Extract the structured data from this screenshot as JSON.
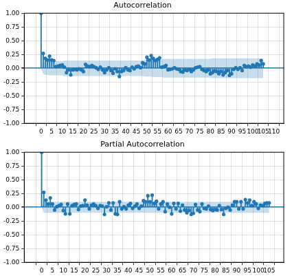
{
  "chart_data": [
    {
      "type": "stem",
      "title": "Autocorrelation",
      "color": "#1f77b4",
      "marker": "o",
      "grid": true,
      "x": [
        0,
        1,
        2,
        3,
        4,
        5,
        6,
        7,
        8,
        9,
        10,
        11,
        12,
        13,
        14,
        15,
        16,
        17,
        18,
        19,
        20,
        21,
        22,
        23,
        24,
        25,
        26,
        27,
        28,
        29,
        30,
        31,
        32,
        33,
        34,
        35,
        36,
        37,
        38,
        39,
        40,
        41,
        42,
        43,
        44,
        45,
        46,
        47,
        48,
        49,
        50,
        51,
        52,
        53,
        54,
        55,
        56,
        57,
        58,
        59,
        60,
        61,
        62,
        63,
        64,
        65,
        66,
        67,
        68,
        69,
        70,
        71,
        72,
        73,
        74,
        75,
        76,
        77,
        78,
        79,
        80,
        81,
        82,
        83,
        84,
        85,
        86,
        87,
        88,
        89,
        90,
        91,
        92,
        93,
        94,
        95,
        96,
        97,
        98,
        99,
        100,
        101,
        102,
        103,
        104,
        105
      ],
      "values": [
        1.0,
        0.27,
        0.18,
        0.15,
        0.22,
        0.15,
        0.14,
        0.03,
        0.04,
        0.05,
        0.06,
        0.02,
        -0.08,
        -0.03,
        -0.12,
        -0.03,
        -0.02,
        -0.03,
        -0.01,
        -0.03,
        -0.06,
        0.07,
        0.04,
        0.03,
        0.05,
        0.03,
        0.01,
        -0.02,
        0.02,
        -0.03,
        -0.08,
        -0.03,
        0.01,
        -0.04,
        -0.09,
        -0.01,
        -0.06,
        -0.15,
        -0.06,
        -0.04,
        0.01,
        -0.03,
        -0.04,
        0.02,
        -0.01,
        0.03,
        0.04,
        0.01,
        0.1,
        0.08,
        0.2,
        0.15,
        0.23,
        0.18,
        0.14,
        0.16,
        0.19,
        0.02,
        0.03,
        0.05,
        -0.03,
        -0.02,
        -0.01,
        0.01,
        -0.01,
        -0.02,
        -0.06,
        -0.07,
        -0.03,
        -0.04,
        -0.02,
        -0.06,
        -0.03,
        0.01,
        0.02,
        0.03,
        -0.02,
        -0.04,
        -0.06,
        -0.03,
        -0.1,
        -0.08,
        -0.05,
        -0.06,
        -0.1,
        -0.06,
        -0.12,
        -0.08,
        -0.04,
        -0.13,
        -0.1,
        -0.02,
        0.01,
        -0.02,
        0.01,
        -0.04,
        0.05,
        0.03,
        0.04,
        0.02,
        0.06,
        0.04,
        0.08,
        0.06,
        0.14,
        0.08
      ],
      "confidence_interval": {
        "upper": [
          0,
          0.11,
          0.12,
          0.12,
          0.13,
          0.13,
          0.13,
          0.13,
          0.13,
          0.13,
          0.13,
          0.14,
          0.14,
          0.14,
          0.14,
          0.14,
          0.14,
          0.14,
          0.14,
          0.14,
          0.14,
          0.14,
          0.14,
          0.14,
          0.14,
          0.14,
          0.14,
          0.14,
          0.14,
          0.14,
          0.14,
          0.14,
          0.14,
          0.14,
          0.14,
          0.14,
          0.14,
          0.14,
          0.14,
          0.14,
          0.14,
          0.14,
          0.14,
          0.14,
          0.14,
          0.14,
          0.14,
          0.14,
          0.14,
          0.15,
          0.15,
          0.15,
          0.15,
          0.16,
          0.16,
          0.16,
          0.16,
          0.16,
          0.17,
          0.17,
          0.17,
          0.17,
          0.17,
          0.17,
          0.17,
          0.17,
          0.17,
          0.17,
          0.17,
          0.17,
          0.17,
          0.17,
          0.17,
          0.17,
          0.17,
          0.17,
          0.17,
          0.17,
          0.17,
          0.17,
          0.17,
          0.18,
          0.18,
          0.18,
          0.18,
          0.18,
          0.18,
          0.18,
          0.18,
          0.18,
          0.18,
          0.18,
          0.18,
          0.18,
          0.18,
          0.18,
          0.18,
          0.18,
          0.18,
          0.18,
          0.18,
          0.18,
          0.18,
          0.18,
          0.18,
          0.18
        ],
        "lower": [
          0,
          -0.11,
          -0.12,
          -0.12,
          -0.13,
          -0.13,
          -0.13,
          -0.13,
          -0.13,
          -0.13,
          -0.13,
          -0.14,
          -0.14,
          -0.14,
          -0.14,
          -0.14,
          -0.14,
          -0.14,
          -0.14,
          -0.14,
          -0.14,
          -0.14,
          -0.14,
          -0.14,
          -0.14,
          -0.14,
          -0.14,
          -0.14,
          -0.14,
          -0.14,
          -0.14,
          -0.14,
          -0.14,
          -0.14,
          -0.14,
          -0.14,
          -0.14,
          -0.14,
          -0.14,
          -0.14,
          -0.14,
          -0.14,
          -0.14,
          -0.14,
          -0.14,
          -0.14,
          -0.14,
          -0.14,
          -0.14,
          -0.15,
          -0.15,
          -0.15,
          -0.15,
          -0.16,
          -0.16,
          -0.16,
          -0.16,
          -0.16,
          -0.17,
          -0.17,
          -0.17,
          -0.17,
          -0.17,
          -0.17,
          -0.17,
          -0.17,
          -0.17,
          -0.17,
          -0.17,
          -0.17,
          -0.17,
          -0.17,
          -0.17,
          -0.17,
          -0.17,
          -0.17,
          -0.17,
          -0.17,
          -0.17,
          -0.17,
          -0.17,
          -0.18,
          -0.18,
          -0.18,
          -0.18,
          -0.18,
          -0.18,
          -0.18,
          -0.18,
          -0.18,
          -0.18,
          -0.18,
          -0.18,
          -0.18,
          -0.18,
          -0.18,
          -0.18,
          -0.18,
          -0.18,
          -0.18,
          -0.18,
          -0.18,
          -0.18,
          -0.18,
          -0.18,
          -0.18
        ]
      },
      "xlim": [
        -5.3,
        112
      ],
      "xticks": [
        0,
        5,
        10,
        15,
        20,
        25,
        30,
        35,
        40,
        45,
        50,
        55,
        60,
        65,
        70,
        75,
        80,
        85,
        90,
        95,
        100,
        105,
        110
      ],
      "ylim": [
        -1,
        1
      ],
      "yticks": [
        {
          "value": -1,
          "label": "-1.00"
        },
        {
          "value": -0.75,
          "label": "-0.75"
        },
        {
          "value": -0.5,
          "label": "-0.50"
        },
        {
          "value": -0.25,
          "label": "-0.25"
        },
        {
          "value": 0,
          "label": "0.00"
        },
        {
          "value": 0.25,
          "label": "0.25"
        },
        {
          "value": 0.5,
          "label": "0.50"
        },
        {
          "value": 0.75,
          "label": "0.75"
        },
        {
          "value": 1,
          "label": "1.00"
        }
      ]
    },
    {
      "type": "stem",
      "title": "Partial Autocorrelation",
      "color": "#1f77b4",
      "marker": "o",
      "grid": true,
      "x": [
        0,
        1,
        2,
        3,
        4,
        5,
        6,
        7,
        8,
        9,
        10,
        11,
        12,
        13,
        14,
        15,
        16,
        17,
        18,
        19,
        20,
        21,
        22,
        23,
        24,
        25,
        26,
        27,
        28,
        29,
        30,
        31,
        32,
        33,
        34,
        35,
        36,
        37,
        38,
        39,
        40,
        41,
        42,
        43,
        44,
        45,
        46,
        47,
        48,
        49,
        50,
        51,
        52,
        53,
        54,
        55,
        56,
        57,
        58,
        59,
        60,
        61,
        62,
        63,
        64,
        65,
        66,
        67,
        68,
        69,
        70,
        71,
        72,
        73,
        74,
        75,
        76,
        77,
        78,
        79,
        80,
        81,
        82,
        83,
        84,
        85,
        86,
        87,
        88,
        89,
        90,
        91,
        92,
        93,
        94,
        95,
        96,
        97,
        98,
        99,
        100,
        101,
        102,
        103,
        104,
        105
      ],
      "values": [
        1.0,
        0.27,
        0.13,
        0.06,
        0.17,
        0.06,
        -0.05,
        0.01,
        0.03,
        0.05,
        -0.06,
        -0.12,
        0.06,
        -0.12,
        0.03,
        0.05,
        0.06,
        -0.04,
        0.02,
        0.03,
        0.13,
        0.04,
        -0.03,
        0.04,
        0.06,
        0.03,
        -0.02,
        0.03,
        0.02,
        -0.13,
        0.01,
        0.08,
        -0.05,
        0.08,
        -0.12,
        -0.13,
        0.1,
        -0.03,
        0.01,
        -0.03,
        0.04,
        0.07,
        -0.02,
        0.02,
        0.06,
        -0.02,
        0.02,
        0.12,
        0.1,
        0.21,
        0.1,
        0.22,
        0.07,
        0.11,
        -0.03,
        0.06,
        0.1,
        -0.08,
        0.06,
        0.0,
        -0.12,
        0.07,
        -0.03,
        0.07,
        -0.07,
        0.04,
        -0.05,
        -0.1,
        -0.06,
        -0.13,
        -0.11,
        0.05,
        -0.05,
        -0.08,
        0.06,
        -0.02,
        -0.03,
        0.02,
        -0.04,
        -0.06,
        -0.04,
        -0.05,
        0.03,
        -0.04,
        -0.13,
        -0.02,
        0.0,
        -0.05,
        0.04,
        0.1,
        0.1,
        -0.03,
        0.1,
        -0.03,
        0.14,
        0.08,
        0.13,
        0.03,
        0.1,
        0.06,
        -0.02,
        0.04,
        0.03,
        0.07,
        0.08,
        0.08
      ],
      "confidence_interval": {
        "upper": [
          0,
          0.1,
          0.1,
          0.1,
          0.1,
          0.1,
          0.1,
          0.1,
          0.1,
          0.1,
          0.1,
          0.1,
          0.1,
          0.1,
          0.1,
          0.1,
          0.1,
          0.1,
          0.1,
          0.1,
          0.1,
          0.1,
          0.1,
          0.1,
          0.1,
          0.1,
          0.1,
          0.1,
          0.1,
          0.1,
          0.1,
          0.1,
          0.1,
          0.1,
          0.1,
          0.1,
          0.1,
          0.1,
          0.1,
          0.1,
          0.1,
          0.1,
          0.1,
          0.1,
          0.1,
          0.1,
          0.1,
          0.1,
          0.1,
          0.1,
          0.1,
          0.1,
          0.1,
          0.1,
          0.1,
          0.1,
          0.1,
          0.1,
          0.1,
          0.1,
          0.1,
          0.1,
          0.1,
          0.1,
          0.1,
          0.1,
          0.1,
          0.1,
          0.1,
          0.1,
          0.1,
          0.1,
          0.1,
          0.1,
          0.1,
          0.1,
          0.1,
          0.1,
          0.1,
          0.1,
          0.1,
          0.1,
          0.1,
          0.1,
          0.1,
          0.1,
          0.1,
          0.1,
          0.1,
          0.1,
          0.1,
          0.1,
          0.1,
          0.1,
          0.1,
          0.1,
          0.1,
          0.1,
          0.1,
          0.1,
          0.1,
          0.1,
          0.1,
          0.1,
          0.1,
          0.1
        ],
        "lower": [
          0,
          -0.1,
          -0.1,
          -0.1,
          -0.1,
          -0.1,
          -0.1,
          -0.1,
          -0.1,
          -0.1,
          -0.1,
          -0.1,
          -0.1,
          -0.1,
          -0.1,
          -0.1,
          -0.1,
          -0.1,
          -0.1,
          -0.1,
          -0.1,
          -0.1,
          -0.1,
          -0.1,
          -0.1,
          -0.1,
          -0.1,
          -0.1,
          -0.1,
          -0.1,
          -0.1,
          -0.1,
          -0.1,
          -0.1,
          -0.1,
          -0.1,
          -0.1,
          -0.1,
          -0.1,
          -0.1,
          -0.1,
          -0.1,
          -0.1,
          -0.1,
          -0.1,
          -0.1,
          -0.1,
          -0.1,
          -0.1,
          -0.1,
          -0.1,
          -0.1,
          -0.1,
          -0.1,
          -0.1,
          -0.1,
          -0.1,
          -0.1,
          -0.1,
          -0.1,
          -0.1,
          -0.1,
          -0.1,
          -0.1,
          -0.1,
          -0.1,
          -0.1,
          -0.1,
          -0.1,
          -0.1,
          -0.1,
          -0.1,
          -0.1,
          -0.1,
          -0.1,
          -0.1,
          -0.1,
          -0.1,
          -0.1,
          -0.1,
          -0.1,
          -0.1,
          -0.1,
          -0.1,
          -0.1,
          -0.1,
          -0.1,
          -0.1,
          -0.1,
          -0.1,
          -0.1,
          -0.1,
          -0.1,
          -0.1,
          -0.1,
          -0.1,
          -0.1,
          -0.1,
          -0.1,
          -0.1,
          -0.1,
          -0.1,
          -0.1,
          -0.1,
          -0.1,
          -0.1
        ]
      },
      "xlim": [
        -5.3,
        109
      ],
      "xticks": [
        0,
        5,
        10,
        15,
        20,
        25,
        30,
        35,
        40,
        45,
        50,
        55,
        60,
        65,
        70,
        75,
        80,
        85,
        90,
        95,
        100,
        105
      ],
      "ylim": [
        -1,
        1
      ],
      "yticks": [
        {
          "value": -1,
          "label": "-1.00"
        },
        {
          "value": -0.75,
          "label": "-0.75"
        },
        {
          "value": -0.5,
          "label": "-0.50"
        },
        {
          "value": -0.25,
          "label": "-0.25"
        },
        {
          "value": 0,
          "label": "0.00"
        },
        {
          "value": 0.25,
          "label": "0.25"
        },
        {
          "value": 0.5,
          "label": "0.50"
        },
        {
          "value": 0.75,
          "label": "0.75"
        },
        {
          "value": 1,
          "label": "1.00"
        }
      ]
    }
  ]
}
